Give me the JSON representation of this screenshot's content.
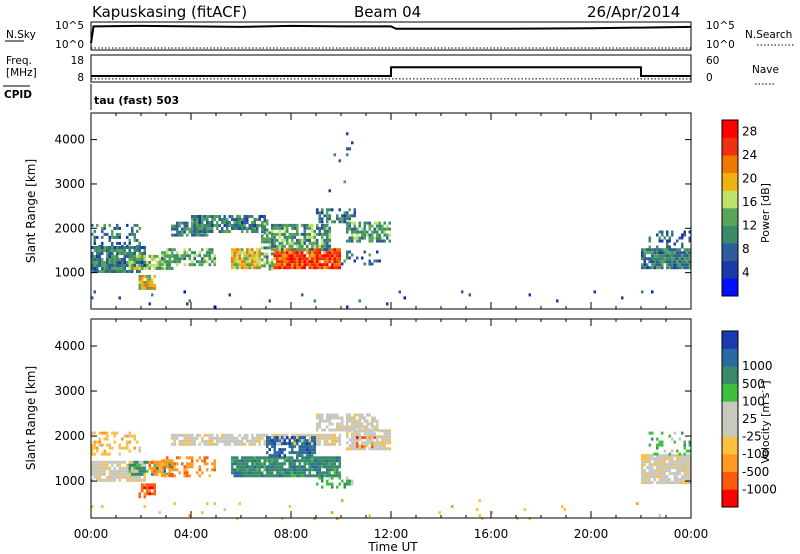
{
  "header": {
    "station": "Kapuskasing (fitACF)",
    "beam": "Beam 04",
    "date": "26/Apr/2014"
  },
  "top_panels": {
    "nsky_label": "N.Sky",
    "nsearch_label": "N.Search",
    "count_ticks": [
      "10^5",
      "10^0"
    ],
    "freq_label_line1": "Freq.",
    "freq_label_line2": "[MHz]",
    "freq_ticks": [
      "18",
      "8"
    ],
    "nave_label": "Nave",
    "nave_ticks": [
      "60",
      "0"
    ],
    "cpid_label": "CPID",
    "cpid_value": "tau (fast) 503"
  },
  "colors": {
    "power_scale": [
      "#0010ff",
      "#1b3aaa",
      "#2f5c9a",
      "#3a8a6a",
      "#56a55a",
      "#bfe26a",
      "#f0b010",
      "#f07800",
      "#f03010",
      "#ff0000"
    ],
    "velocity_scale": [
      "#ff0000",
      "#ff5a10",
      "#ff9a20",
      "#ffc040",
      "#c8c8be",
      "#c8c8be",
      "#3fbf3f",
      "#3a8a6a",
      "#2a6aa0",
      "#1a3ab0"
    ],
    "grey": "#c8c8be"
  },
  "chart_data": [
    {
      "type": "line",
      "title": "N.Sky / N.Search",
      "x_unit": "hours UT",
      "xlim": [
        0,
        24
      ],
      "scale": "log",
      "ylim_ticks": [
        "10^0",
        "10^5"
      ],
      "series": [
        {
          "name": "N.Sky",
          "style": "solid",
          "x": [
            0,
            0.1,
            0.2,
            2,
            4,
            6,
            8,
            10,
            12,
            12.2,
            16,
            20,
            22,
            24
          ],
          "y_level": [
            0.2,
            0.9,
            0.9,
            0.92,
            0.9,
            0.88,
            0.92,
            0.9,
            0.9,
            0.8,
            0.8,
            0.82,
            0.85,
            0.88
          ]
        },
        {
          "name": "N.Search",
          "style": "dotted",
          "x": [
            0,
            24
          ],
          "y_level": [
            0.0,
            0.0
          ]
        }
      ]
    },
    {
      "type": "line",
      "title": "Freq. / Nave",
      "xlim": [
        0,
        24
      ],
      "series": [
        {
          "name": "Freq. [MHz]",
          "style": "solid",
          "x": [
            0,
            12,
            12,
            22,
            22,
            24
          ],
          "y": [
            10,
            10,
            13.5,
            13.5,
            10,
            10
          ],
          "ylim": [
            8,
            18
          ]
        },
        {
          "name": "Nave",
          "style": "dotted",
          "x": [
            0,
            24
          ],
          "y": [
            5,
            5
          ],
          "ylim": [
            0,
            60
          ]
        }
      ]
    },
    {
      "type": "heatmap",
      "title": "Power [dB]",
      "xlabel": "",
      "ylabel": "Slant Range [km]",
      "xlim": [
        0,
        24
      ],
      "ylim": [
        180,
        4600
      ],
      "yticks": [
        1000,
        2000,
        3000,
        4000
      ],
      "colorbar": {
        "label": "Power [dB]",
        "ticks": [
          "4",
          "8",
          "12",
          "16",
          "20",
          "24",
          "28"
        ],
        "range": [
          0,
          30
        ]
      },
      "regions": [
        {
          "t": [
            0.0,
            2.0
          ],
          "r": [
            1600,
            2100
          ],
          "v": 9,
          "d": 0.35
        },
        {
          "t": [
            0.0,
            2.2
          ],
          "r": [
            1050,
            1600
          ],
          "v": 10,
          "d": 0.9
        },
        {
          "t": [
            1.5,
            3.3
          ],
          "r": [
            1100,
            1400
          ],
          "v": 14,
          "d": 0.8
        },
        {
          "t": [
            1.9,
            2.6
          ],
          "r": [
            650,
            950
          ],
          "v": 17,
          "d": 0.8
        },
        {
          "t": [
            2.8,
            5.0
          ],
          "r": [
            1150,
            1550
          ],
          "v": 13,
          "d": 0.6
        },
        {
          "t": [
            3.2,
            4.7
          ],
          "r": [
            1850,
            2150
          ],
          "v": 10,
          "d": 0.7
        },
        {
          "t": [
            4.0,
            7.0
          ],
          "r": [
            1950,
            2300
          ],
          "v": 10,
          "d": 0.8
        },
        {
          "t": [
            5.6,
            6.8
          ],
          "r": [
            1100,
            1550
          ],
          "v": 18,
          "d": 0.95
        },
        {
          "t": [
            6.8,
            7.3
          ],
          "r": [
            1100,
            2200
          ],
          "v": 13,
          "d": 0.6
        },
        {
          "t": [
            7.3,
            10.0
          ],
          "r": [
            1100,
            1550
          ],
          "v": 25,
          "d": 0.95
        },
        {
          "t": [
            7.2,
            9.6
          ],
          "r": [
            1550,
            2100
          ],
          "v": 12,
          "d": 0.75
        },
        {
          "t": [
            9.0,
            10.6
          ],
          "r": [
            2150,
            2450
          ],
          "v": 9,
          "d": 0.6
        },
        {
          "t": [
            10.2,
            12.0
          ],
          "r": [
            1700,
            2150
          ],
          "v": 12,
          "d": 0.75
        },
        {
          "t": [
            10.0,
            11.6
          ],
          "r": [
            1200,
            1500
          ],
          "v": 9,
          "d": 0.25
        },
        {
          "t": [
            22.0,
            24.0
          ],
          "r": [
            1100,
            1550
          ],
          "v": 10,
          "d": 0.9
        },
        {
          "t": [
            22.3,
            24.0
          ],
          "r": [
            1600,
            1950
          ],
          "v": 8,
          "d": 0.3
        },
        {
          "t": [
            0.0,
            24.0
          ],
          "r": [
            200,
            600
          ],
          "v": 7,
          "d": 0.02
        },
        {
          "t": [
            9.5,
            10.5
          ],
          "r": [
            2500,
            4300
          ],
          "v": 8,
          "d": 0.03
        }
      ]
    },
    {
      "type": "heatmap",
      "title": "Velocity [m s-1]",
      "xlabel": "Time UT",
      "ylabel": "Slant Range [km]",
      "xlim": [
        0,
        24
      ],
      "ylim": [
        180,
        4600
      ],
      "yticks": [
        1000,
        2000,
        3000,
        4000
      ],
      "xticks": [
        "00:00",
        "04:00",
        "08:00",
        "12:00",
        "16:00",
        "20:00",
        "00:00"
      ],
      "colorbar": {
        "label": "Velocity [m s",
        "label_sup": "-1",
        "label_end": "]",
        "ticks": [
          "-1000",
          "-500",
          "-100",
          "-25",
          "25",
          "100",
          "500",
          "1000"
        ]
      },
      "regions": [
        {
          "t": [
            0.0,
            2.2
          ],
          "r": [
            1000,
            1450
          ],
          "c": 4,
          "d": 0.9
        },
        {
          "t": [
            0.0,
            2.0
          ],
          "r": [
            1600,
            2100
          ],
          "c": 3,
          "d": 0.3
        },
        {
          "t": [
            1.5,
            3.3
          ],
          "r": [
            1150,
            1450
          ],
          "c": 7,
          "d": 0.7
        },
        {
          "t": [
            2.3,
            3.0
          ],
          "r": [
            1150,
            1450
          ],
          "c": 2,
          "d": 0.8
        },
        {
          "t": [
            1.9,
            2.6
          ],
          "r": [
            650,
            950
          ],
          "c": 1,
          "d": 0.8
        },
        {
          "t": [
            2.8,
            5.0
          ],
          "r": [
            1150,
            1550
          ],
          "c": 2,
          "d": 0.5
        },
        {
          "t": [
            3.2,
            10.0
          ],
          "r": [
            1850,
            2050
          ],
          "c": 4,
          "d": 0.85
        },
        {
          "t": [
            5.6,
            10.0
          ],
          "r": [
            1100,
            1550
          ],
          "c": 7,
          "d": 0.9
        },
        {
          "t": [
            7.0,
            9.0
          ],
          "r": [
            1550,
            2000
          ],
          "c": 8,
          "d": 0.7
        },
        {
          "t": [
            9.0,
            11.5
          ],
          "r": [
            2150,
            2500
          ],
          "c": 4,
          "d": 0.7
        },
        {
          "t": [
            10.2,
            12.0
          ],
          "r": [
            1700,
            2150
          ],
          "c": 4,
          "d": 0.8
        },
        {
          "t": [
            10.6,
            11.4
          ],
          "r": [
            1800,
            2000
          ],
          "c": 1,
          "d": 0.5
        },
        {
          "t": [
            9.0,
            10.5
          ],
          "r": [
            850,
            1100
          ],
          "c": 6,
          "d": 0.4
        },
        {
          "t": [
            22.0,
            24.0
          ],
          "r": [
            1000,
            1600
          ],
          "c": 4,
          "d": 0.9
        },
        {
          "t": [
            22.3,
            24.0
          ],
          "r": [
            1600,
            2100
          ],
          "c": 6,
          "d": 0.3
        },
        {
          "t": [
            0.0,
            24.0
          ],
          "r": [
            200,
            600
          ],
          "c": 3,
          "d": 0.02
        }
      ]
    }
  ]
}
